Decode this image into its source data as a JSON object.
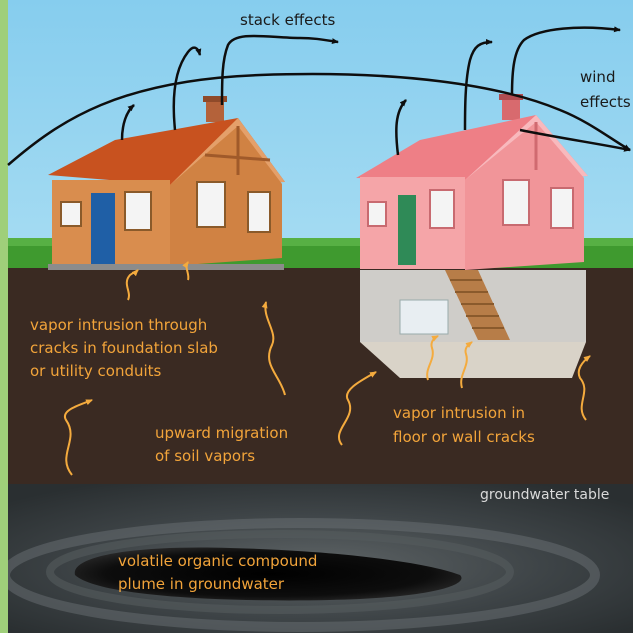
{
  "labels": {
    "stack_effects": "stack effects",
    "wind_line1": "wind",
    "wind_line2": "effects",
    "slab_line1": "vapor intrusion through",
    "slab_line2": "cracks in foundation slab",
    "slab_line3": "or utility conduits",
    "migration_line1": "upward migration",
    "migration_line2": "of soil vapors",
    "floor_line1": "vapor intrusion in",
    "floor_line2": "floor or wall cracks",
    "groundwater_table": "groundwater table",
    "plume_line1": "volatile organic compound",
    "plume_line2": "plume in groundwater"
  },
  "colors": {
    "sky": "#8fd0ee",
    "grass": "#3f9a2f",
    "soil": "#3a2a22",
    "groundwater": "#3b4144",
    "plume": "#0b0b0b",
    "label_text": "#f2a43a",
    "house_left_wall": "#d98d4e",
    "house_left_roof": "#c8521f",
    "house_right_wall": "#f5a5a8",
    "house_right_roof": "#ee7f86",
    "basement": "#c8c6c2",
    "stairs": "#b77d48",
    "left_door": "#1f5fa6",
    "right_door": "#2f8a57",
    "arrow": "#0e0e0e",
    "vapor_arrow": "#f4ab3e"
  }
}
